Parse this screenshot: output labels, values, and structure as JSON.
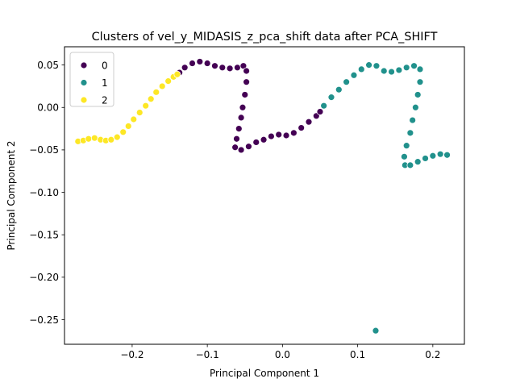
{
  "chart_data": {
    "type": "scatter",
    "title": "Clusters of vel_y_MIDASIS_z_pca_shift data after PCA_SHIFT",
    "xlabel": "Principal Component 1",
    "ylabel": "Principal Component 2",
    "xlim": [
      -0.29,
      0.242
    ],
    "ylim": [
      -0.279,
      0.0715
    ],
    "xticks": [
      {
        "v": -0.2,
        "label": "−0.2"
      },
      {
        "v": -0.1,
        "label": "−0.1"
      },
      {
        "v": 0.0,
        "label": "0.0"
      },
      {
        "v": 0.1,
        "label": "0.1"
      },
      {
        "v": 0.2,
        "label": "0.2"
      }
    ],
    "yticks": [
      {
        "v": 0.05,
        "label": "0.05"
      },
      {
        "v": 0.0,
        "label": "0.00"
      },
      {
        "v": -0.05,
        "label": "−0.05"
      },
      {
        "v": -0.1,
        "label": "−0.10"
      },
      {
        "v": -0.15,
        "label": "−0.15"
      },
      {
        "v": -0.2,
        "label": "−0.20"
      },
      {
        "v": -0.25,
        "label": "−0.25"
      }
    ],
    "grid": false,
    "legend_position": "top-left",
    "series": [
      {
        "name": "0",
        "color": "#440154",
        "points": [
          [
            -0.137,
            0.041
          ],
          [
            -0.13,
            0.047
          ],
          [
            -0.12,
            0.052
          ],
          [
            -0.11,
            0.054
          ],
          [
            -0.1,
            0.052
          ],
          [
            -0.09,
            0.049
          ],
          [
            -0.08,
            0.047
          ],
          [
            -0.07,
            0.046
          ],
          [
            -0.06,
            0.047
          ],
          [
            -0.052,
            0.049
          ],
          [
            -0.048,
            0.043
          ],
          [
            -0.048,
            0.03
          ],
          [
            -0.05,
            0.015
          ],
          [
            -0.053,
            0.0
          ],
          [
            -0.055,
            -0.012
          ],
          [
            -0.058,
            -0.025
          ],
          [
            -0.061,
            -0.037
          ],
          [
            -0.063,
            -0.047
          ],
          [
            -0.055,
            -0.05
          ],
          [
            -0.045,
            -0.046
          ],
          [
            -0.035,
            -0.041
          ],
          [
            -0.025,
            -0.038
          ],
          [
            -0.015,
            -0.034
          ],
          [
            -0.005,
            -0.032
          ],
          [
            0.005,
            -0.033
          ],
          [
            0.015,
            -0.03
          ],
          [
            0.025,
            -0.024
          ],
          [
            0.035,
            -0.017
          ],
          [
            0.045,
            -0.01
          ],
          [
            0.05,
            -0.005
          ]
        ]
      },
      {
        "name": "1",
        "color": "#21918c",
        "points": [
          [
            0.055,
            0.002
          ],
          [
            0.065,
            0.012
          ],
          [
            0.075,
            0.021
          ],
          [
            0.085,
            0.03
          ],
          [
            0.095,
            0.038
          ],
          [
            0.105,
            0.045
          ],
          [
            0.115,
            0.05
          ],
          [
            0.125,
            0.049
          ],
          [
            0.135,
            0.043
          ],
          [
            0.145,
            0.042
          ],
          [
            0.155,
            0.044
          ],
          [
            0.165,
            0.047
          ],
          [
            0.175,
            0.049
          ],
          [
            0.183,
            0.045
          ],
          [
            0.183,
            0.03
          ],
          [
            0.18,
            0.015
          ],
          [
            0.177,
            0.0
          ],
          [
            0.173,
            -0.015
          ],
          [
            0.17,
            -0.03
          ],
          [
            0.165,
            -0.045
          ],
          [
            0.162,
            -0.058
          ],
          [
            0.163,
            -0.068
          ],
          [
            0.17,
            -0.068
          ],
          [
            0.18,
            -0.064
          ],
          [
            0.19,
            -0.06
          ],
          [
            0.2,
            -0.057
          ],
          [
            0.21,
            -0.055
          ],
          [
            0.219,
            -0.056
          ],
          [
            0.124,
            -0.263
          ]
        ]
      },
      {
        "name": "2",
        "color": "#fde725",
        "points": [
          [
            -0.272,
            -0.04
          ],
          [
            -0.265,
            -0.039
          ],
          [
            -0.258,
            -0.037
          ],
          [
            -0.25,
            -0.036
          ],
          [
            -0.242,
            -0.038
          ],
          [
            -0.235,
            -0.039
          ],
          [
            -0.228,
            -0.038
          ],
          [
            -0.22,
            -0.035
          ],
          [
            -0.212,
            -0.029
          ],
          [
            -0.205,
            -0.022
          ],
          [
            -0.198,
            -0.014
          ],
          [
            -0.19,
            -0.006
          ],
          [
            -0.182,
            0.002
          ],
          [
            -0.175,
            0.01
          ],
          [
            -0.168,
            0.018
          ],
          [
            -0.16,
            0.025
          ],
          [
            -0.152,
            0.031
          ],
          [
            -0.145,
            0.036
          ],
          [
            -0.14,
            0.039
          ]
        ]
      }
    ]
  }
}
